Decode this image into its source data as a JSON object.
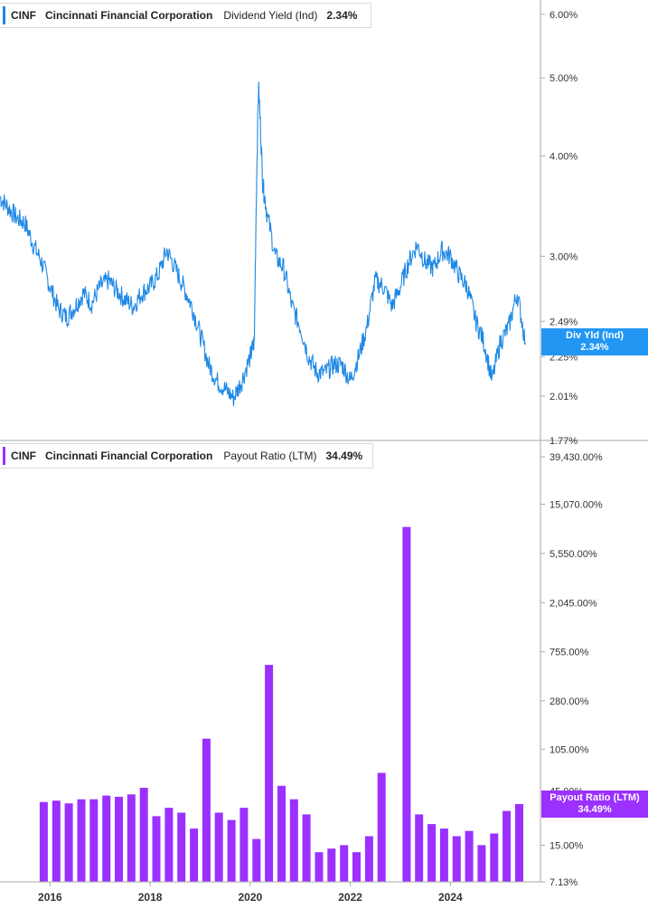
{
  "legend_top": {
    "ticker": "CINF",
    "company": "Cincinnati Financial Corporation",
    "metric": "Dividend Yield (Ind)",
    "value": "2.34%"
  },
  "legend_bottom": {
    "ticker": "CINF",
    "company": "Cincinnati Financial Corporation",
    "metric": "Payout Ratio (LTM)",
    "value": "34.49%"
  },
  "tag_top": {
    "label": "Div Yld (Ind)",
    "value": "2.34%"
  },
  "tag_bottom": {
    "label": "Payout Ratio (LTM)",
    "value": "34.49%"
  },
  "colors": {
    "line": "#1e88e5",
    "bar": "#9b30ff",
    "tag_blue": "#2196f3",
    "tag_purple": "#9b30ff",
    "axis": "#aaaaaa",
    "text": "#333333"
  },
  "chart_data": [
    {
      "type": "line",
      "title": "Dividend Yield (Ind)",
      "series": [
        {
          "name": "Dividend Yield (Ind)",
          "x": [
            "2015-01",
            "2015-03",
            "2015-05",
            "2015-07",
            "2015-09",
            "2015-11",
            "2016-01",
            "2016-03",
            "2016-05",
            "2016-07",
            "2016-09",
            "2016-11",
            "2017-01",
            "2017-03",
            "2017-05",
            "2017-07",
            "2017-09",
            "2017-11",
            "2018-01",
            "2018-03",
            "2018-05",
            "2018-07",
            "2018-09",
            "2018-11",
            "2019-01",
            "2019-03",
            "2019-05",
            "2019-07",
            "2019-09",
            "2019-11",
            "2020-01",
            "2020-02",
            "2020-03",
            "2020-04",
            "2020-05",
            "2020-07",
            "2020-09",
            "2020-11",
            "2021-01",
            "2021-03",
            "2021-05",
            "2021-07",
            "2021-09",
            "2021-11",
            "2022-01",
            "2022-03",
            "2022-05",
            "2022-07",
            "2022-09",
            "2022-11",
            "2023-01",
            "2023-03",
            "2023-05",
            "2023-07",
            "2023-09",
            "2023-11",
            "2024-01",
            "2024-03",
            "2024-05",
            "2024-07",
            "2024-09",
            "2024-11",
            "2025-01",
            "2025-03",
            "2025-05",
            "2025-07"
          ],
          "values": [
            3.55,
            3.45,
            3.35,
            3.3,
            3.1,
            2.95,
            2.75,
            2.58,
            2.52,
            2.6,
            2.7,
            2.62,
            2.75,
            2.8,
            2.72,
            2.65,
            2.6,
            2.7,
            2.75,
            2.85,
            3.05,
            2.9,
            2.75,
            2.6,
            2.4,
            2.2,
            2.1,
            2.05,
            2.0,
            2.1,
            2.25,
            2.35,
            4.9,
            3.7,
            3.4,
            3.0,
            2.9,
            2.6,
            2.45,
            2.25,
            2.15,
            2.15,
            2.2,
            2.2,
            2.1,
            2.25,
            2.45,
            2.8,
            2.75,
            2.6,
            2.75,
            2.95,
            3.1,
            2.95,
            2.9,
            3.05,
            3.0,
            2.85,
            2.75,
            2.5,
            2.35,
            2.1,
            2.35,
            2.45,
            2.7,
            2.34
          ]
        }
      ],
      "y_ticks": [
        "6.00%",
        "5.00%",
        "4.00%",
        "3.00%",
        "2.49%",
        "2.25%",
        "2.01%",
        "1.77%"
      ],
      "scale": "log"
    },
    {
      "type": "bar",
      "title": "Payout Ratio (LTM)",
      "categories": [
        "2015Q4",
        "2016Q1",
        "2016Q2",
        "2016Q3",
        "2016Q4",
        "2017Q1",
        "2017Q2",
        "2017Q3",
        "2017Q4",
        "2018Q1",
        "2018Q2",
        "2018Q3",
        "2018Q4",
        "2019Q1",
        "2019Q2",
        "2019Q3",
        "2019Q4",
        "2020Q1",
        "2020Q2",
        "2020Q3",
        "2020Q4",
        "2021Q1",
        "2021Q2",
        "2021Q3",
        "2021Q4",
        "2022Q1",
        "2022Q2",
        "2022Q3",
        "2022Q4",
        "2023Q1",
        "2023Q2",
        "2023Q3",
        "2023Q4",
        "2024Q1",
        "2024Q2",
        "2024Q3",
        "2024Q4",
        "2025Q1",
        "2025Q2"
      ],
      "values": [
        36,
        37,
        35,
        38,
        38,
        41,
        40,
        42,
        48,
        27,
        32,
        29,
        21,
        130,
        29,
        25,
        32,
        17,
        580,
        50,
        38,
        28,
        13,
        14,
        15,
        13,
        18,
        65,
        null,
        9500,
        28,
        23,
        21,
        18,
        20,
        15,
        19,
        30,
        34.49
      ],
      "x_ticks": [
        "2016",
        "2018",
        "2020",
        "2022",
        "2024"
      ],
      "y_ticks": [
        "39,430.00%",
        "15,070.00%",
        "5,550.00%",
        "2,045.00%",
        "755.00%",
        "280.00%",
        "105.00%",
        "45.00%",
        "15.00%",
        "7.13%"
      ],
      "scale": "log"
    }
  ]
}
